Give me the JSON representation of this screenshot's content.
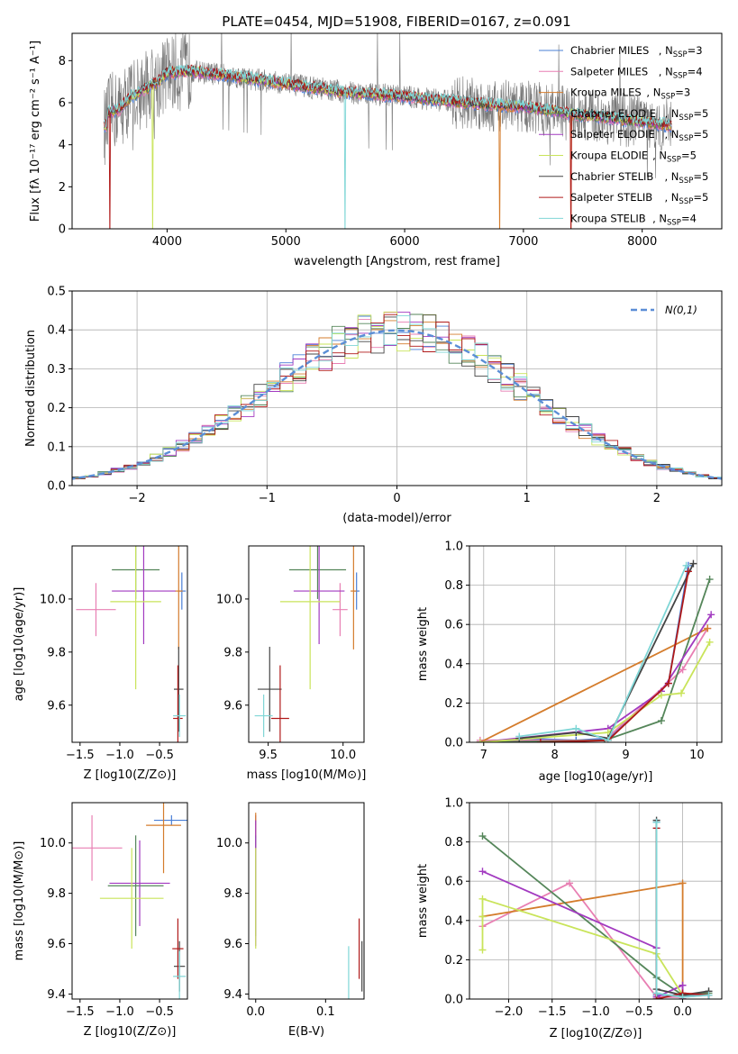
{
  "title": "PLATE=0454, MJD=51908, FIBERID=0167, z=0.091",
  "colors": {
    "Chabrier MILES": "#4a7fd6",
    "Salpeter MILES": "#e87fb3",
    "Kroupa MILES": "#d47c2c",
    "Chabrier ELODIE": "#55865a",
    "Salpeter ELODIE": "#a23ac0",
    "Kroupa ELODIE": "#c9e45a",
    "Chabrier STELIB": "#444444",
    "Salpeter STELIB": "#b01a1a",
    "Kroupa STELIB": "#7fd6d6"
  },
  "legend1": {
    "entries": [
      {
        "name": "Chabrier MILES",
        "n": "3"
      },
      {
        "name": "Salpeter MILES",
        "n": "4"
      },
      {
        "name": "Kroupa MILES",
        "n": "3"
      },
      {
        "name": "Chabrier ELODIE",
        "n": "5"
      },
      {
        "name": "Salpeter ELODIE",
        "n": "5"
      },
      {
        "name": "Kroupa ELODIE",
        "n": "5"
      },
      {
        "name": "Chabrier STELIB",
        "n": "5"
      },
      {
        "name": "Salpeter STELIB",
        "n": "5"
      },
      {
        "name": "Kroupa STELIB",
        "n": "4"
      }
    ]
  },
  "legend2": {
    "label": "N(0,1)"
  },
  "chart_data": [
    {
      "type": "line",
      "id": "spectrum",
      "title": "PLATE=0454, MJD=51908, FIBERID=0167, z=0.091",
      "xlabel": "wavelength [Angstrom, rest frame]",
      "ylabel": "Flux [fλ 10⁻¹⁷ erg cm⁻² s⁻¹ A⁻¹]",
      "xlim": [
        3200,
        8670
      ],
      "ylim": [
        0,
        9.3
      ],
      "xticks": [
        4000,
        5000,
        6000,
        7000,
        8000
      ],
      "yticks": [
        0,
        2,
        4,
        6,
        8
      ],
      "grid": false,
      "legend": "top-right",
      "model_continuum": {
        "x": [
          3500,
          3600,
          3700,
          3800,
          3900,
          4000,
          4200,
          4500,
          5000,
          5500,
          6000,
          6500,
          7000,
          7500,
          8000,
          8250
        ],
        "y": [
          5.5,
          5.7,
          6.3,
          6.6,
          6.9,
          7.4,
          7.5,
          7.3,
          6.9,
          6.5,
          6.3,
          6.0,
          5.8,
          5.4,
          5.1,
          4.9
        ]
      },
      "data_range": [
        3470,
        8250
      ]
    },
    {
      "type": "histogram",
      "id": "residuals",
      "xlabel": "(data-model)/error",
      "ylabel": "Normed distribution",
      "xlim": [
        -2.5,
        2.5
      ],
      "ylim": [
        0,
        0.5
      ],
      "xticks": [
        -2,
        -1,
        0,
        1,
        2
      ],
      "yticks": [
        0.0,
        0.1,
        0.2,
        0.3,
        0.4,
        0.5
      ],
      "grid": true,
      "legend": "top-right",
      "reference_curve": {
        "name": "N(0,1)",
        "mean": 0,
        "sigma": 1
      },
      "bin_width": 0.1
    },
    {
      "type": "scatter",
      "id": "age_vs_Z",
      "xlabel": "Z [log10(Z/Z⊙)]",
      "ylabel": "age [log10(age/yr)]",
      "xlim": [
        -1.6,
        -0.15
      ],
      "ylim": [
        9.46,
        10.2
      ],
      "xticks": [
        -1.5,
        -1.0,
        -0.5
      ],
      "yticks": [
        9.6,
        9.8,
        10.0
      ],
      "points": [
        {
          "series": "Chabrier MILES",
          "x": -0.22,
          "y": 10.03,
          "xerr": 0.05,
          "yerr": 0.07
        },
        {
          "series": "Salpeter MILES",
          "x": -1.3,
          "y": 9.96,
          "xerr": 0.25,
          "yerr": 0.1
        },
        {
          "series": "Kroupa MILES",
          "x": -0.26,
          "y": 10.03,
          "xerr": 0.05,
          "yerr": 0.22
        },
        {
          "series": "Chabrier ELODIE",
          "x": -0.8,
          "y": 10.11,
          "xerr": 0.3,
          "yerr": 0.11
        },
        {
          "series": "Salpeter ELODIE",
          "x": -0.7,
          "y": 10.03,
          "xerr": 0.4,
          "yerr": 0.2
        },
        {
          "series": "Kroupa ELODIE",
          "x": -0.8,
          "y": 9.99,
          "xerr": 0.32,
          "yerr": 0.33
        },
        {
          "series": "Chabrier STELIB",
          "x": -0.26,
          "y": 9.66,
          "xerr": 0.06,
          "yerr": 0.16
        },
        {
          "series": "Salpeter STELIB",
          "x": -0.27,
          "y": 9.55,
          "xerr": 0.06,
          "yerr": 0.2
        },
        {
          "series": "Kroupa STELIB",
          "x": -0.25,
          "y": 9.56,
          "xerr": 0.08,
          "yerr": 0.08
        }
      ]
    },
    {
      "type": "scatter",
      "id": "age_vs_mass",
      "xlabel": "mass [log10(M/M⊙)]",
      "ylabel": "",
      "xlim": [
        9.37,
        10.14
      ],
      "ylim": [
        9.46,
        10.2
      ],
      "xticks": [
        9.5,
        10.0
      ],
      "yticks": [
        9.6,
        9.8,
        10.0
      ],
      "points": [
        {
          "series": "Chabrier MILES",
          "x": 10.09,
          "y": 10.03,
          "xerr": 0.02,
          "yerr": 0.07
        },
        {
          "series": "Salpeter MILES",
          "x": 9.98,
          "y": 9.96,
          "xerr": 0.05,
          "yerr": 0.1
        },
        {
          "series": "Kroupa MILES",
          "x": 10.07,
          "y": 10.03,
          "xerr": 0.02,
          "yerr": 0.22
        },
        {
          "series": "Chabrier ELODIE",
          "x": 9.83,
          "y": 10.11,
          "xerr": 0.19,
          "yerr": 0.11
        },
        {
          "series": "Salpeter ELODIE",
          "x": 9.84,
          "y": 10.03,
          "xerr": 0.17,
          "yerr": 0.2
        },
        {
          "series": "Kroupa ELODIE",
          "x": 9.78,
          "y": 9.99,
          "xerr": 0.2,
          "yerr": 0.33
        },
        {
          "series": "Chabrier STELIB",
          "x": 9.51,
          "y": 9.66,
          "xerr": 0.08,
          "yerr": 0.16
        },
        {
          "series": "Salpeter STELIB",
          "x": 9.58,
          "y": 9.55,
          "xerr": 0.06,
          "yerr": 0.2
        },
        {
          "series": "Kroupa STELIB",
          "x": 9.47,
          "y": 9.56,
          "xerr": 0.06,
          "yerr": 0.08
        }
      ]
    },
    {
      "type": "line",
      "id": "massweight_vs_age",
      "xlabel": "age [log10(age/yr)]",
      "ylabel": "mass weight",
      "xlim": [
        6.8,
        10.35
      ],
      "ylim": [
        0,
        1.0
      ],
      "xticks": [
        7,
        8,
        9,
        10
      ],
      "yticks": [
        0.0,
        0.2,
        0.4,
        0.6,
        0.8,
        1.0
      ],
      "grid": true,
      "series": [
        {
          "name": "Chabrier MILES",
          "x": [
            7.5,
            8.3,
            8.75,
            9.6,
            9.88
          ],
          "y": [
            0.02,
            0.01,
            0.02,
            0.3,
            0.9
          ]
        },
        {
          "name": "Salpeter MILES",
          "x": [
            6.95,
            8.7,
            9.8,
            10.15
          ],
          "y": [
            0.01,
            0.01,
            0.37,
            0.58
          ]
        },
        {
          "name": "Kroupa MILES",
          "x": [
            6.95,
            10.15
          ],
          "y": [
            0.0,
            0.58
          ]
        },
        {
          "name": "Chabrier ELODIE",
          "x": [
            6.95,
            8.7,
            9.5,
            10.18
          ],
          "y": [
            0.0,
            0.01,
            0.11,
            0.83
          ]
        },
        {
          "name": "Salpeter ELODIE",
          "x": [
            6.95,
            8.75,
            9.5,
            10.2
          ],
          "y": [
            0.0,
            0.07,
            0.26,
            0.65
          ]
        },
        {
          "name": "Kroupa ELODIE",
          "x": [
            6.95,
            8.75,
            9.5,
            9.78,
            10.18
          ],
          "y": [
            0.0,
            0.05,
            0.24,
            0.25,
            0.51
          ]
        },
        {
          "name": "Chabrier STELIB",
          "x": [
            7.5,
            8.3,
            8.75,
            9.95
          ],
          "y": [
            0.02,
            0.05,
            0.02,
            0.91
          ]
        },
        {
          "name": "Salpeter STELIB",
          "x": [
            7.8,
            8.75,
            9.6,
            9.88
          ],
          "y": [
            0.0,
            0.01,
            0.3,
            0.87
          ]
        },
        {
          "name": "Kroupa STELIB",
          "x": [
            7.5,
            8.3,
            8.75,
            9.85
          ],
          "y": [
            0.03,
            0.07,
            0.01,
            0.9
          ]
        }
      ]
    },
    {
      "type": "scatter",
      "id": "mass_vs_Z",
      "xlabel": "Z [log10(Z/Z⊙)]",
      "ylabel": "mass [log10(M/M⊙)]",
      "xlim": [
        -1.6,
        -0.15
      ],
      "ylim": [
        9.38,
        10.16
      ],
      "xticks": [
        -1.5,
        -1.0,
        -0.5
      ],
      "yticks": [
        9.4,
        9.6,
        9.8,
        10.0
      ],
      "points": [
        {
          "series": "Chabrier MILES",
          "x": -0.35,
          "y": 10.09,
          "xerr": 0.22,
          "yerr": 0.02
        },
        {
          "series": "Salpeter MILES",
          "x": -1.35,
          "y": 9.98,
          "xerr": 0.38,
          "yerr": 0.13
        },
        {
          "series": "Kroupa MILES",
          "x": -0.45,
          "y": 10.07,
          "xerr": 0.22,
          "yerr": 0.19
        },
        {
          "series": "Chabrier ELODIE",
          "x": -0.8,
          "y": 9.83,
          "xerr": 0.35,
          "yerr": 0.2
        },
        {
          "series": "Salpeter ELODIE",
          "x": -0.75,
          "y": 9.84,
          "xerr": 0.38,
          "yerr": 0.17
        },
        {
          "series": "Kroupa ELODIE",
          "x": -0.85,
          "y": 9.78,
          "xerr": 0.4,
          "yerr": 0.2
        },
        {
          "series": "Chabrier STELIB",
          "x": -0.25,
          "y": 9.51,
          "xerr": 0.07,
          "yerr": 0.1
        },
        {
          "series": "Salpeter STELIB",
          "x": -0.27,
          "y": 9.58,
          "xerr": 0.07,
          "yerr": 0.12
        },
        {
          "series": "Kroupa STELIB",
          "x": -0.25,
          "y": 9.47,
          "xerr": 0.08,
          "yerr": 0.1
        }
      ]
    },
    {
      "type": "scatter",
      "id": "mass_vs_ebv",
      "xlabel": "E(B-V)",
      "ylabel": "",
      "xlim": [
        -0.01,
        0.155
      ],
      "ylim": [
        9.38,
        10.16
      ],
      "xticks": [
        0.0,
        0.1
      ],
      "yticks": [
        9.4,
        9.6,
        9.8,
        10.0
      ],
      "points": [
        {
          "series": "Chabrier MILES",
          "x": 0.0,
          "y": 10.09,
          "xerr": 0.0,
          "yerr": 0.02
        },
        {
          "series": "Salpeter MILES",
          "x": 0.0,
          "y": 9.98,
          "xerr": 0.0,
          "yerr": 0.13
        },
        {
          "series": "Kroupa MILES",
          "x": 0.0,
          "y": 10.07,
          "xerr": 0.0,
          "yerr": 0.05
        },
        {
          "series": "Chabrier ELODIE",
          "x": 0.0,
          "y": 9.83,
          "xerr": 0.0,
          "yerr": 0.2
        },
        {
          "series": "Salpeter ELODIE",
          "x": 0.0,
          "y": 9.84,
          "xerr": 0.0,
          "yerr": 0.25
        },
        {
          "series": "Kroupa ELODIE",
          "x": 0.0,
          "y": 9.78,
          "xerr": 0.0,
          "yerr": 0.2
        },
        {
          "series": "Chabrier STELIB",
          "x": 0.152,
          "y": 9.51,
          "xerr": 0.0,
          "yerr": 0.1
        },
        {
          "series": "Salpeter STELIB",
          "x": 0.148,
          "y": 9.58,
          "xerr": 0.0,
          "yerr": 0.12
        },
        {
          "series": "Kroupa STELIB",
          "x": 0.133,
          "y": 9.47,
          "xerr": 0.0,
          "yerr": 0.12
        }
      ]
    },
    {
      "type": "line",
      "id": "massweight_vs_Z",
      "xlabel": "Z [log10(Z/Z⊙)]",
      "ylabel": "mass weight",
      "xlim": [
        -2.45,
        0.45
      ],
      "ylim": [
        0,
        1.0
      ],
      "xticks": [
        -2.0,
        -1.5,
        -1.0,
        -0.5,
        0.0
      ],
      "yticks": [
        0.0,
        0.2,
        0.4,
        0.6,
        0.8,
        1.0
      ],
      "grid": true,
      "series": [
        {
          "name": "Chabrier MILES",
          "x": [
            -0.3,
            -0.3,
            0.3
          ],
          "y": [
            0.9,
            0.02,
            0.02
          ]
        },
        {
          "name": "Salpeter MILES",
          "x": [
            -2.3,
            -1.3,
            -0.3,
            0.0,
            0.3
          ],
          "y": [
            0.37,
            0.59,
            0.01,
            0.01,
            0.02
          ]
        },
        {
          "name": "Kroupa MILES",
          "x": [
            -2.3,
            0.0,
            0.0
          ],
          "y": [
            0.42,
            0.59,
            0.0
          ]
        },
        {
          "name": "Chabrier ELODIE",
          "x": [
            -2.3,
            -0.3,
            0.0,
            0.3
          ],
          "y": [
            0.83,
            0.11,
            0.02,
            0.03
          ]
        },
        {
          "name": "Salpeter ELODIE",
          "x": [
            -2.3,
            -0.3,
            -0.3,
            0.0,
            0.0
          ],
          "y": [
            0.65,
            0.26,
            0.01,
            0.07,
            0.0
          ]
        },
        {
          "name": "Kroupa ELODIE",
          "x": [
            -2.3,
            -2.3,
            -2.3,
            -0.3,
            0.0
          ],
          "y": [
            0.25,
            0.42,
            0.51,
            0.23,
            0.02
          ]
        },
        {
          "name": "Chabrier STELIB",
          "x": [
            -0.3,
            -0.3,
            0.0,
            0.3
          ],
          "y": [
            0.91,
            0.05,
            0.02,
            0.04
          ]
        },
        {
          "name": "Salpeter STELIB",
          "x": [
            -0.3,
            -0.3,
            0.0,
            0.3
          ],
          "y": [
            0.87,
            0.0,
            0.03,
            0.02
          ]
        },
        {
          "name": "Kroupa STELIB",
          "x": [
            -0.3,
            -0.3,
            0.0,
            0.3
          ],
          "y": [
            0.9,
            0.03,
            0.01,
            0.02
          ]
        }
      ]
    }
  ]
}
